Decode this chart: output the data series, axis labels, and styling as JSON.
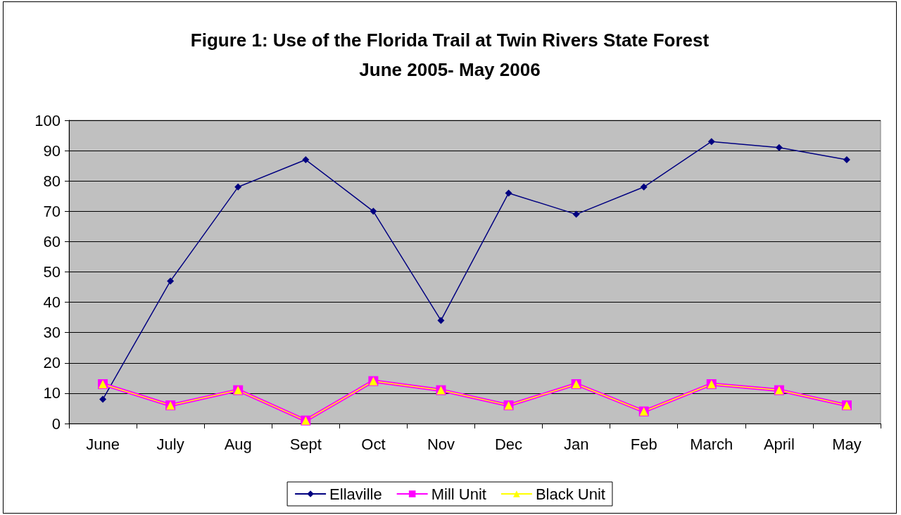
{
  "chart_data": {
    "type": "line",
    "title": "Figure 1: Use of the Florida Trail at Twin Rivers State Forest\nJune 2005- May 2006",
    "categories": [
      "June",
      "July",
      "Aug",
      "Sept",
      "Oct",
      "Nov",
      "Dec",
      "Jan",
      "Feb",
      "March",
      "April",
      "May"
    ],
    "series": [
      {
        "name": "Ellaville",
        "color": "#000080",
        "marker": "diamond",
        "values": [
          8,
          47,
          78,
          87,
          70,
          34,
          76,
          69,
          78,
          93,
          91,
          87
        ]
      },
      {
        "name": "Mill Unit",
        "color": "#ff00ff",
        "marker": "square",
        "values": [
          13,
          6,
          11,
          1,
          14,
          11,
          6,
          13,
          4,
          13,
          11,
          6
        ]
      },
      {
        "name": "Black Unit",
        "color": "#ffff00",
        "marker": "triangle",
        "values": [
          13,
          6,
          11,
          1,
          14,
          11,
          6,
          13,
          4,
          13,
          11,
          6
        ]
      }
    ],
    "ylim": [
      0,
      100
    ],
    "yticks": [
      0,
      10,
      20,
      30,
      40,
      50,
      60,
      70,
      80,
      90,
      100
    ],
    "grid": "y",
    "legend": "bottom",
    "line_style": "solid"
  }
}
